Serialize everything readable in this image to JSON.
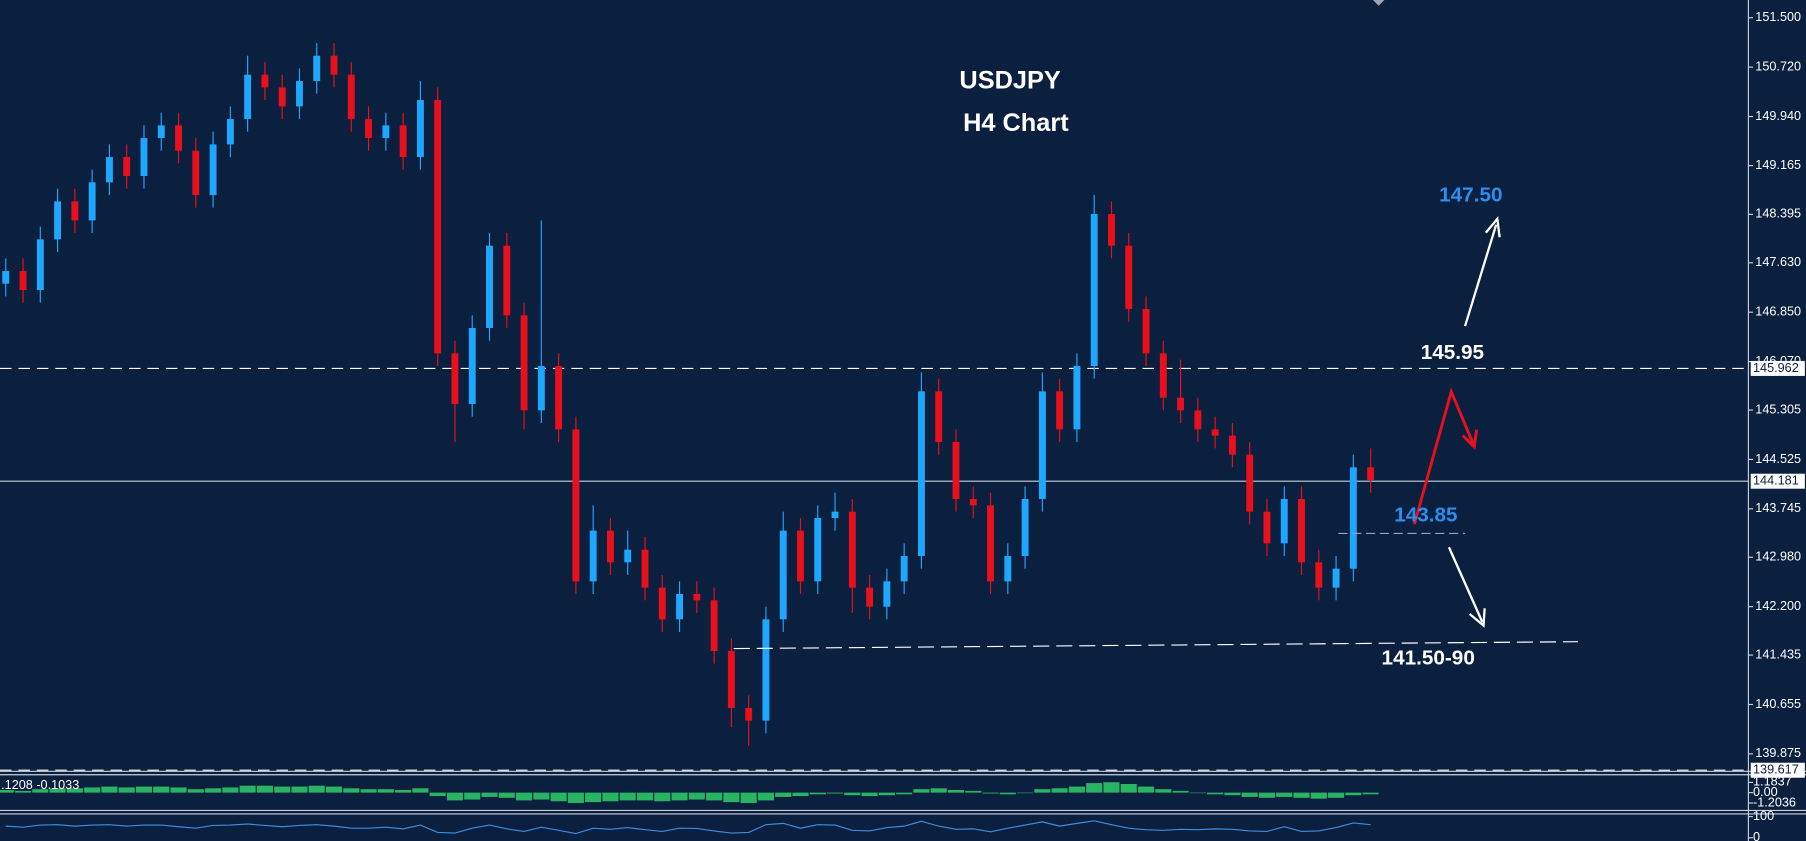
{
  "chart_data": {
    "type": "candlestick",
    "title": "USDJPY",
    "subtitle": "H4 Chart",
    "up_color": "#1ea7ff",
    "down_color": "#e8101c",
    "open": [
      147.3,
      147.5,
      147.2,
      148.0,
      148.6,
      148.3,
      148.9,
      149.3,
      149.0,
      149.6,
      149.8,
      149.4,
      148.7,
      149.5,
      149.9,
      150.6,
      150.4,
      150.1,
      150.5,
      150.9,
      150.6,
      149.9,
      149.6,
      149.8,
      149.3,
      150.2,
      146.2,
      145.4,
      146.6,
      147.9,
      146.8,
      145.3,
      146.0,
      145.0,
      142.6,
      143.4,
      142.9,
      143.1,
      142.5,
      142.0,
      142.4,
      142.3,
      141.5,
      140.6,
      140.4,
      142.0,
      143.4,
      142.6,
      143.6,
      143.7,
      142.5,
      142.2,
      142.6,
      143.0,
      145.6,
      144.8,
      143.9,
      143.8,
      142.6,
      143.0,
      143.9,
      145.6,
      145.0,
      146.0,
      148.4,
      147.9,
      146.9,
      146.2,
      145.5,
      145.3,
      145.0,
      144.9,
      144.6,
      143.7,
      143.2,
      143.9,
      142.9,
      142.5,
      142.8,
      144.4
    ],
    "high": [
      147.7,
      147.7,
      148.2,
      148.8,
      148.8,
      149.1,
      149.5,
      149.5,
      149.8,
      150.0,
      150.0,
      149.6,
      149.7,
      150.1,
      150.9,
      150.8,
      150.6,
      150.7,
      151.1,
      151.1,
      150.8,
      150.1,
      150.0,
      150.0,
      150.5,
      150.4,
      146.4,
      146.8,
      148.1,
      148.1,
      147.0,
      148.3,
      146.2,
      145.2,
      143.8,
      143.6,
      143.4,
      143.3,
      142.7,
      142.6,
      142.6,
      142.5,
      141.7,
      140.8,
      142.2,
      143.7,
      143.6,
      143.8,
      144.0,
      143.9,
      142.7,
      142.8,
      143.2,
      145.9,
      145.8,
      145.0,
      144.1,
      144.0,
      143.2,
      144.1,
      145.9,
      145.8,
      146.2,
      148.7,
      148.6,
      148.1,
      147.1,
      146.4,
      146.1,
      145.5,
      145.2,
      145.1,
      144.8,
      143.9,
      144.1,
      144.1,
      143.1,
      143.0,
      144.6,
      144.7
    ],
    "low": [
      147.1,
      147.0,
      147.0,
      147.8,
      148.1,
      148.1,
      148.7,
      148.8,
      148.8,
      149.4,
      149.2,
      148.5,
      148.5,
      149.3,
      149.7,
      150.2,
      149.9,
      149.9,
      150.3,
      150.4,
      149.7,
      149.4,
      149.4,
      149.1,
      149.1,
      146.0,
      144.8,
      145.2,
      146.4,
      146.6,
      145.0,
      145.1,
      144.8,
      142.4,
      142.4,
      142.7,
      142.7,
      142.3,
      141.8,
      141.8,
      142.1,
      141.3,
      140.3,
      140.0,
      140.2,
      141.8,
      142.4,
      142.4,
      143.4,
      142.1,
      142.0,
      142.0,
      142.4,
      142.8,
      144.6,
      143.7,
      143.6,
      142.4,
      142.4,
      142.8,
      143.7,
      144.8,
      144.8,
      145.8,
      147.7,
      146.7,
      146.0,
      145.3,
      145.1,
      144.8,
      144.7,
      144.4,
      143.5,
      143.0,
      143.0,
      142.7,
      142.3,
      142.3,
      142.6,
      144.0
    ],
    "close": [
      147.5,
      147.2,
      148.0,
      148.6,
      148.3,
      148.9,
      149.3,
      149.0,
      149.6,
      149.8,
      149.4,
      148.7,
      149.5,
      149.9,
      150.6,
      150.4,
      150.1,
      150.5,
      150.9,
      150.6,
      149.9,
      149.6,
      149.8,
      149.3,
      150.2,
      146.2,
      145.4,
      146.6,
      147.9,
      146.8,
      145.3,
      146.0,
      145.0,
      142.6,
      143.4,
      142.9,
      143.1,
      142.5,
      142.0,
      142.4,
      142.3,
      141.5,
      140.6,
      140.4,
      142.0,
      143.4,
      142.6,
      143.6,
      143.7,
      142.5,
      142.2,
      142.6,
      143.0,
      145.6,
      144.8,
      143.9,
      143.8,
      142.6,
      143.0,
      143.9,
      145.6,
      145.0,
      146.0,
      148.4,
      147.9,
      146.9,
      146.2,
      145.5,
      145.3,
      145.0,
      144.9,
      144.6,
      143.7,
      143.2,
      143.9,
      142.9,
      142.5,
      142.8,
      144.4,
      144.2
    ],
    "ylim": [
      139.5,
      151.78
    ],
    "yticks": [
      {
        "value": 151.5,
        "label": "151.500"
      },
      {
        "value": 150.72,
        "label": "150.720"
      },
      {
        "value": 149.94,
        "label": "149.940"
      },
      {
        "value": 149.165,
        "label": "149.165"
      },
      {
        "value": 148.395,
        "label": "148.395"
      },
      {
        "value": 147.63,
        "label": "147.630"
      },
      {
        "value": 146.85,
        "label": "146.850"
      },
      {
        "value": 146.07,
        "label": "146.070"
      },
      {
        "value": 145.305,
        "label": "145.305"
      },
      {
        "value": 144.525,
        "label": "144.525"
      },
      {
        "value": 143.745,
        "label": "143.745"
      },
      {
        "value": 142.98,
        "label": "142.980"
      },
      {
        "value": 142.2,
        "label": "142.200"
      },
      {
        "value": 141.435,
        "label": "141.435"
      },
      {
        "value": 140.655,
        "label": "140.655"
      },
      {
        "value": 139.875,
        "label": "139.875"
      }
    ],
    "levels": [
      {
        "value": 145.962,
        "label": "145.962",
        "style": "dashed"
      },
      {
        "value": 144.181,
        "label": "144.181",
        "style": "solid"
      },
      {
        "value": 139.617,
        "label": "139.617",
        "style": "dashed"
      }
    ],
    "annotations": [
      "147.50",
      "145.95",
      "143.85",
      "141.50-90"
    ],
    "macd": {
      "label": ".1208 -0.1033",
      "color": "#2fcf6a",
      "ylim": [
        -2,
        2
      ],
      "yticks": [
        {
          "value": 1.1837,
          "label": "1.1837"
        },
        {
          "value": 0,
          "label": "0.00"
        },
        {
          "value": -1.2036,
          "label": "-1.2036"
        }
      ],
      "values": [
        0.3,
        0.2,
        0.4,
        0.5,
        0.5,
        0.6,
        0.7,
        0.6,
        0.7,
        0.7,
        0.6,
        0.4,
        0.5,
        0.6,
        0.8,
        0.8,
        0.7,
        0.7,
        0.8,
        0.7,
        0.5,
        0.4,
        0.4,
        0.3,
        0.5,
        -0.4,
        -0.9,
        -0.8,
        -0.5,
        -0.6,
        -0.9,
        -0.8,
        -1.0,
        -1.2,
        -1.1,
        -1.0,
        -0.9,
        -0.9,
        -1.0,
        -0.9,
        -0.8,
        -0.9,
        -1.1,
        -1.2,
        -0.9,
        -0.5,
        -0.4,
        -0.2,
        -0.1,
        -0.3,
        -0.4,
        -0.3,
        -0.2,
        0.4,
        0.5,
        0.3,
        0.2,
        -0.1,
        -0.2,
        0.0,
        0.4,
        0.5,
        0.7,
        1.1,
        1.2,
        1.0,
        0.7,
        0.4,
        0.2,
        0.0,
        -0.2,
        -0.3,
        -0.5,
        -0.6,
        -0.5,
        -0.6,
        -0.7,
        -0.6,
        -0.3,
        -0.2
      ]
    },
    "oscillator": {
      "color": "#3b8fe0",
      "ylim": [
        -10,
        110
      ],
      "yticks": [
        100,
        0
      ],
      "values": [
        55,
        50,
        60,
        62,
        55,
        60,
        62,
        55,
        60,
        60,
        52,
        45,
        58,
        60,
        65,
        58,
        52,
        58,
        62,
        55,
        45,
        45,
        50,
        42,
        60,
        25,
        22,
        45,
        60,
        42,
        30,
        50,
        35,
        20,
        45,
        40,
        48,
        38,
        30,
        45,
        44,
        32,
        22,
        25,
        62,
        68,
        45,
        62,
        60,
        35,
        32,
        48,
        55,
        78,
        55,
        40,
        42,
        28,
        45,
        60,
        75,
        55,
        68,
        80,
        62,
        45,
        38,
        35,
        40,
        38,
        42,
        40,
        32,
        30,
        52,
        30,
        32,
        48,
        70,
        62
      ]
    }
  }
}
